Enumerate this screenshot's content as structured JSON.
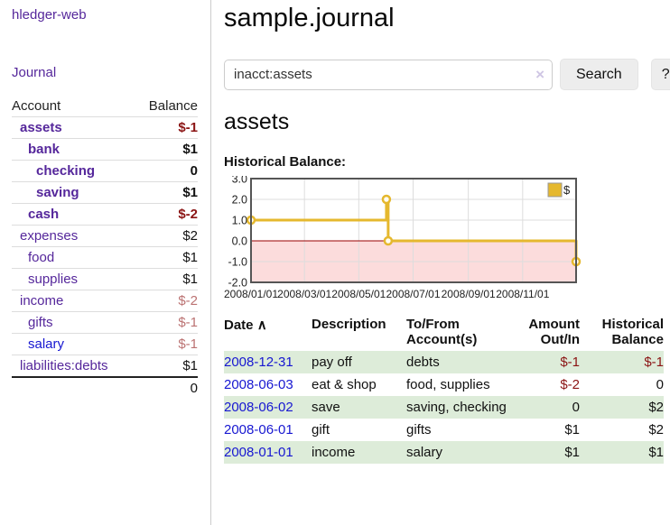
{
  "app": {
    "brand": "hledger-web"
  },
  "nav": {
    "journal": "Journal"
  },
  "sidebar": {
    "account_header": "Account",
    "balance_header": "Balance",
    "accounts": [
      {
        "name": "assets",
        "indent": 1,
        "balance": "$-1",
        "bold": true,
        "neg": "strong",
        "blue": false
      },
      {
        "name": "bank",
        "indent": 2,
        "balance": "$1",
        "bold": true,
        "neg": null,
        "blue": false
      },
      {
        "name": "checking",
        "indent": 3,
        "balance": "0",
        "bold": true,
        "neg": null,
        "blue": false
      },
      {
        "name": "saving",
        "indent": 3,
        "balance": "$1",
        "bold": true,
        "neg": null,
        "blue": false
      },
      {
        "name": "cash",
        "indent": 2,
        "balance": "$-2",
        "bold": true,
        "neg": "strong",
        "blue": false
      },
      {
        "name": "expenses",
        "indent": 1,
        "balance": "$2",
        "bold": false,
        "neg": null,
        "blue": false
      },
      {
        "name": "food",
        "indent": 2,
        "balance": "$1",
        "bold": false,
        "neg": null,
        "blue": false
      },
      {
        "name": "supplies",
        "indent": 2,
        "balance": "$1",
        "bold": false,
        "neg": null,
        "blue": false
      },
      {
        "name": "income",
        "indent": 1,
        "balance": "$-2",
        "bold": false,
        "neg": "soft",
        "blue": false
      },
      {
        "name": "gifts",
        "indent": 2,
        "balance": "$-1",
        "bold": false,
        "neg": "soft",
        "blue": false
      },
      {
        "name": "salary",
        "indent": 2,
        "balance": "$-1",
        "bold": false,
        "neg": "soft",
        "blue": true
      },
      {
        "name": "liabilities:debts",
        "indent": 1,
        "balance": "$1",
        "bold": false,
        "neg": null,
        "blue": false
      }
    ],
    "total": "0"
  },
  "main": {
    "title": "sample.journal",
    "search": {
      "value": "inacct:assets",
      "clear_icon": "×",
      "search_label": "Search",
      "help_label": "?"
    },
    "account_heading": "assets",
    "chart_title": "Historical Balance:"
  },
  "chart_data": {
    "type": "line",
    "style": "step-after",
    "title": "Historical Balance",
    "legend": [
      {
        "label": "$"
      }
    ],
    "legend_position": "top-right",
    "grid": true,
    "xlim": [
      "2008-01-01",
      "2008-12-31"
    ],
    "ylim": [
      -2.0,
      3.0
    ],
    "x_ticks": [
      "2008/01/01",
      "2008/03/01",
      "2008/05/01",
      "2008/07/01",
      "2008/09/01",
      "2008/11/01"
    ],
    "y_ticks": [
      3.0,
      2.0,
      1.0,
      0.0,
      -1.0,
      -2.0
    ],
    "series": [
      {
        "name": "$",
        "points": [
          [
            "2008-01-01",
            1
          ],
          [
            "2008-06-01",
            2
          ],
          [
            "2008-06-03",
            0
          ],
          [
            "2008-12-31",
            -1
          ]
        ]
      }
    ],
    "colors": {
      "line": "#e5b82e",
      "marker_fill": "#fffdf2",
      "negative_region": "#fcdcdc",
      "zero_line": "#990000",
      "grid": "#dddddd",
      "border": "#555555"
    }
  },
  "register": {
    "columns": [
      "Date",
      "Description",
      "To/From Account(s)",
      "Amount Out/In",
      "Historical Balance"
    ],
    "sort_icon": "∧",
    "rows": [
      {
        "date": "2008-12-31",
        "description": "pay off",
        "accounts": "debts",
        "amount": "$-1",
        "balance": "$-1",
        "amount_neg": true,
        "balance_neg": true
      },
      {
        "date": "2008-06-03",
        "description": "eat & shop",
        "accounts": "food, supplies",
        "amount": "$-2",
        "balance": "0",
        "amount_neg": true,
        "balance_neg": false
      },
      {
        "date": "2008-06-02",
        "description": "save",
        "accounts": "saving, checking",
        "amount": "0",
        "balance": "$2",
        "amount_neg": false,
        "balance_neg": false
      },
      {
        "date": "2008-06-01",
        "description": "gift",
        "accounts": "gifts",
        "amount": "$1",
        "balance": "$2",
        "amount_neg": false,
        "balance_neg": false
      },
      {
        "date": "2008-01-01",
        "description": "income",
        "accounts": "salary",
        "amount": "$1",
        "balance": "$1",
        "amount_neg": false,
        "balance_neg": false
      }
    ]
  }
}
